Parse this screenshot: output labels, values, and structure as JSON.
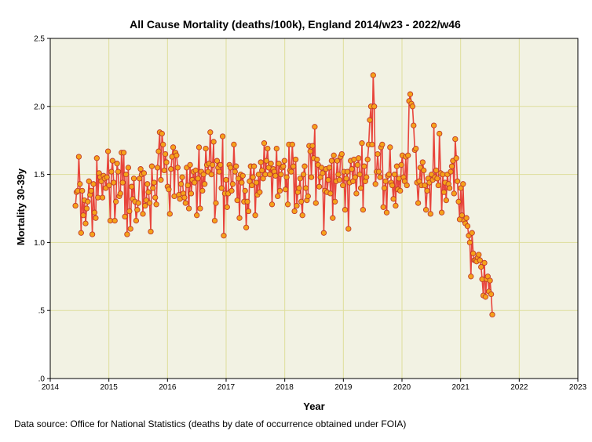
{
  "chart_data": {
    "type": "line",
    "title": "All Cause Mortality (deaths/100k), England 2014/w23 - 2022/w46",
    "xlabel": "Year",
    "ylabel": "Mortality 30-39y",
    "xlim": [
      2014,
      2023
    ],
    "ylim": [
      0,
      2.5
    ],
    "x_ticks": [
      2014,
      2015,
      2016,
      2017,
      2018,
      2019,
      2020,
      2021,
      2022,
      2023
    ],
    "x_tick_labels": [
      "2014",
      "2015",
      "2016",
      "2017",
      "2018",
      "2019",
      "2020",
      "2021",
      "2022",
      "2023"
    ],
    "y_ticks": [
      0,
      0.5,
      1.0,
      1.5,
      2.0,
      2.5
    ],
    "y_tick_labels": [
      ".0",
      ".5",
      "1.0",
      "1.5",
      "2.0",
      "2.5"
    ],
    "grid": true,
    "series": [
      {
        "name": "Mortality 30-39y",
        "x_start": 2014.43,
        "x_step": 0.019165,
        "values": [
          1.27,
          1.37,
          1.38,
          1.63,
          1.43,
          1.07,
          1.38,
          1.2,
          1.31,
          1.14,
          1.25,
          1.3,
          1.45,
          1.35,
          1.38,
          1.06,
          1.43,
          1.22,
          1.18,
          1.62,
          1.33,
          1.51,
          1.48,
          1.45,
          1.33,
          1.49,
          1.47,
          1.4,
          1.48,
          1.67,
          1.42,
          1.16,
          1.52,
          1.6,
          1.44,
          1.16,
          1.3,
          1.58,
          1.52,
          1.34,
          1.36,
          1.66,
          1.44,
          1.66,
          1.19,
          1.5,
          1.06,
          1.55,
          1.23,
          1.1,
          1.41,
          1.32,
          1.47,
          1.3,
          1.16,
          1.24,
          1.29,
          1.47,
          1.54,
          1.5,
          1.21,
          1.51,
          1.27,
          1.31,
          1.43,
          1.37,
          1.29,
          1.08,
          1.56,
          1.4,
          1.44,
          1.33,
          1.28,
          1.55,
          1.67,
          1.81,
          1.46,
          1.8,
          1.72,
          1.53,
          1.65,
          1.59,
          1.41,
          1.39,
          1.21,
          1.54,
          1.63,
          1.7,
          1.34,
          1.66,
          1.64,
          1.55,
          1.35,
          1.32,
          1.43,
          1.48,
          1.36,
          1.33,
          1.29,
          1.55,
          1.42,
          1.25,
          1.57,
          1.36,
          1.46,
          1.52,
          1.44,
          1.53,
          1.2,
          1.47,
          1.7,
          1.25,
          1.52,
          1.38,
          1.5,
          1.43,
          1.69,
          1.57,
          1.52,
          1.58,
          1.81,
          1.5,
          1.57,
          1.74,
          1.16,
          1.29,
          1.6,
          1.55,
          1.52,
          1.57,
          1.4,
          1.78,
          1.05,
          1.36,
          1.46,
          1.26,
          1.36,
          1.57,
          1.55,
          1.38,
          1.43,
          1.72,
          1.52,
          1.56,
          1.31,
          1.47,
          1.18,
          1.5,
          1.44,
          1.49,
          1.3,
          1.38,
          1.11,
          1.3,
          1.23,
          1.45,
          1.56,
          1.42,
          1.48,
          1.56,
          1.2,
          1.44,
          1.35,
          1.5,
          1.37,
          1.59,
          1.53,
          1.47,
          1.73,
          1.5,
          1.6,
          1.69,
          1.55,
          1.5,
          1.58,
          1.28,
          1.54,
          1.52,
          1.49,
          1.69,
          1.34,
          1.58,
          1.38,
          1.5,
          1.55,
          1.56,
          1.6,
          1.39,
          1.48,
          1.28,
          1.72,
          1.53,
          1.52,
          1.72,
          1.56,
          1.23,
          1.61,
          1.27,
          1.37,
          1.4,
          1.47,
          1.3,
          1.2,
          1.5,
          1.56,
          1.4,
          1.31,
          1.34,
          1.71,
          1.67,
          1.48,
          1.71,
          1.62,
          1.85,
          1.29,
          1.61,
          1.57,
          1.41,
          1.48,
          1.55,
          1.51,
          1.07,
          1.38,
          1.54,
          1.37,
          1.46,
          1.55,
          1.36,
          1.6,
          1.18,
          1.64,
          1.3,
          1.45,
          1.6,
          1.5,
          1.46,
          1.63,
          1.65,
          1.42,
          1.52,
          1.24,
          1.47,
          1.52,
          1.1,
          1.44,
          1.6,
          1.54,
          1.45,
          1.61,
          1.48,
          1.36,
          1.57,
          1.62,
          1.5,
          1.4,
          1.73,
          1.24,
          1.56,
          1.45,
          1.48,
          1.61,
          1.72,
          1.9,
          2.0,
          1.72,
          2.23,
          2.0,
          1.43,
          1.52,
          1.65,
          1.52,
          1.48,
          1.7,
          1.72,
          1.26,
          1.4,
          1.45,
          1.22,
          1.49,
          1.5,
          1.7,
          1.44,
          1.42,
          1.32,
          1.5,
          1.27,
          1.56,
          1.39,
          1.47,
          1.38,
          1.57,
          1.64,
          1.48,
          1.45,
          1.63,
          1.42,
          1.64,
          2.04,
          2.09,
          2.02,
          2.0,
          1.86,
          1.68,
          1.69,
          1.44,
          1.29,
          1.45,
          1.55,
          1.42,
          1.59,
          1.53,
          1.42,
          1.24,
          1.38,
          1.47,
          1.44,
          1.21,
          1.5,
          1.46,
          1.86,
          1.48,
          1.53,
          1.47,
          1.42,
          1.8,
          1.51,
          1.22,
          1.5,
          1.37,
          1.44,
          1.31,
          1.5,
          1.43,
          1.4,
          1.52,
          1.56,
          1.6,
          1.36,
          1.76,
          1.62,
          1.45,
          1.3,
          1.17,
          1.4,
          1.2,
          1.43,
          1.16,
          1.14,
          1.18,
          1.12,
          1.05,
          1.0,
          0.75,
          1.07,
          0.92,
          0.87,
          0.87,
          0.86,
          0.89,
          0.91,
          0.87,
          0.82,
          0.73,
          0.61,
          0.85,
          0.6,
          0.73,
          0.75,
          0.64,
          0.72,
          0.62,
          0.47
        ]
      }
    ]
  },
  "footer": {
    "source_note": "Data source: Office for National Statistics (deaths by date of occurrence obtained under FOIA)"
  },
  "colors": {
    "plot_background": "#f2f2e3",
    "gridline": "#dede9b",
    "line": "#e8453c",
    "marker_fill": "#f5a21a",
    "marker_stroke": "#c0392b",
    "axis": "#000000"
  }
}
